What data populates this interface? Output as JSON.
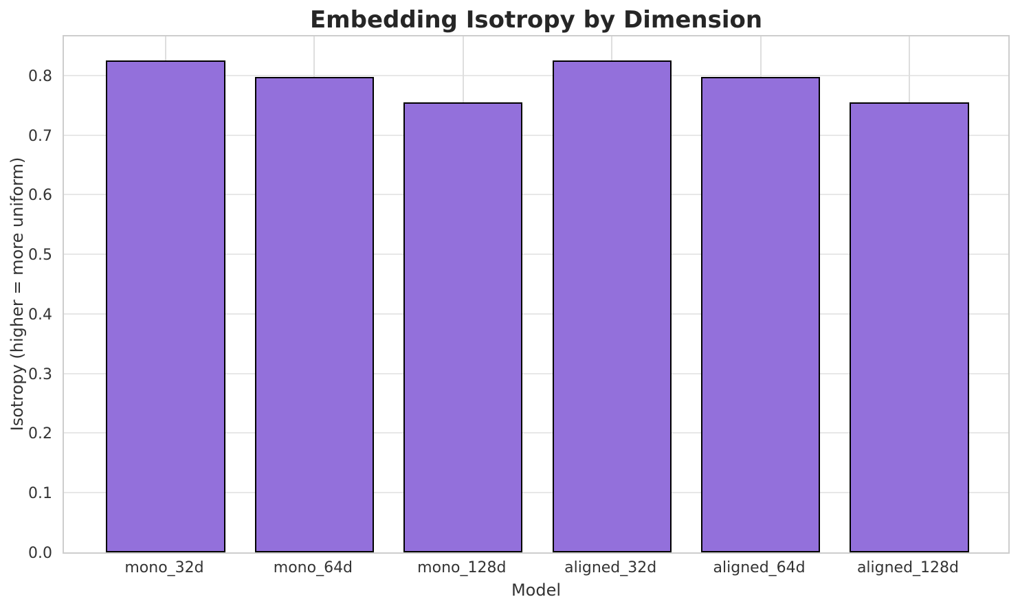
{
  "chart_data": {
    "type": "bar",
    "title": "Embedding Isotropy by Dimension",
    "xlabel": "Model",
    "ylabel": "Isotropy (higher = more uniform)",
    "categories": [
      "mono_32d",
      "mono_64d",
      "mono_128d",
      "aligned_32d",
      "aligned_64d",
      "aligned_128d"
    ],
    "values": [
      0.825,
      0.797,
      0.755,
      0.825,
      0.797,
      0.755
    ],
    "ytick_values": [
      0.0,
      0.1,
      0.2,
      0.3,
      0.4,
      0.5,
      0.6,
      0.7,
      0.8
    ],
    "ytick_labels": [
      "0.0",
      "0.1",
      "0.2",
      "0.3",
      "0.4",
      "0.5",
      "0.6",
      "0.7",
      "0.8"
    ],
    "ylim": [
      0.0,
      0.87
    ],
    "grid": true,
    "legend": null,
    "bar_color": "#9370DB",
    "bar_edge_color": "#000000",
    "grid_color": "#e7e7e7",
    "spine_color": "#cdcdcd",
    "text_color": "#333333",
    "title_color": "#262626",
    "background_color": "#ffffff"
  }
}
